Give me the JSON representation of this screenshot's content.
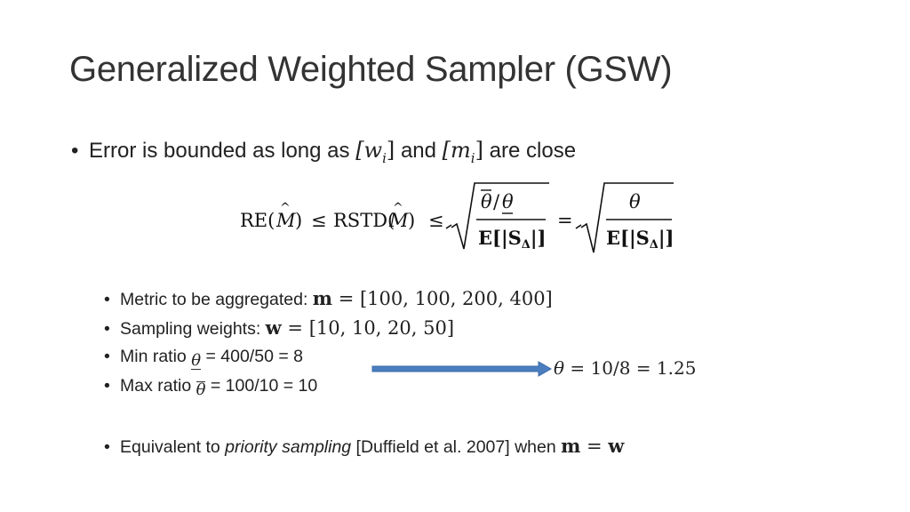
{
  "slide": {
    "title": "Generalized Weighted Sampler (GSW)"
  },
  "main_bullet": {
    "text_before": "Error is bounded as long as ",
    "w_i": "[w",
    "w_sub": "i",
    "w_close": "]",
    "and": " and ",
    "m_i": "[m",
    "m_sub": "i",
    "m_close": "]",
    "text_after": " are close"
  },
  "formula": {
    "lhs1": "RE(",
    "M": "M",
    "close": ")",
    "leq": "≤",
    "rstd": "RSTD(",
    "num_left": "θ",
    "slash": "/",
    "num_right": "θ",
    "den": "E[|S",
    "den_sub": "Δ",
    "den_close": "|]",
    "eq": "=",
    "num2": "θ",
    "den2": "E[|S",
    "den2_sub": "Δ",
    "den2_close": "|]"
  },
  "sub_bullets": [
    {
      "label": "Metric to be aggregated: ",
      "var": "m",
      "eq": " = ",
      "value": "[100, 100, 200, 400]"
    },
    {
      "label": "Sampling weights: ",
      "var": "w",
      "eq": " = ",
      "value": "[10, 10, 20, 50]"
    },
    {
      "label": "Min ratio ",
      "symbol": "θ",
      "value": " = 400/50 = 8"
    },
    {
      "label": "Max ratio ",
      "symbol": "θ",
      "value": " = 100/10 = 10"
    }
  ],
  "theta_result": {
    "theta": "θ",
    "expr": " = 10/8 = 1.25"
  },
  "last_bullet": {
    "text_before": "Equivalent to ",
    "emph": "priority sampling",
    "text_after": " [Duffield et al. 2007] when ",
    "lhs": "m",
    "eq": " = ",
    "rhs": "w"
  },
  "colors": {
    "arrow": "#4a7ebf",
    "arrow_stroke": "#3a6aa8",
    "text": "#222222"
  }
}
